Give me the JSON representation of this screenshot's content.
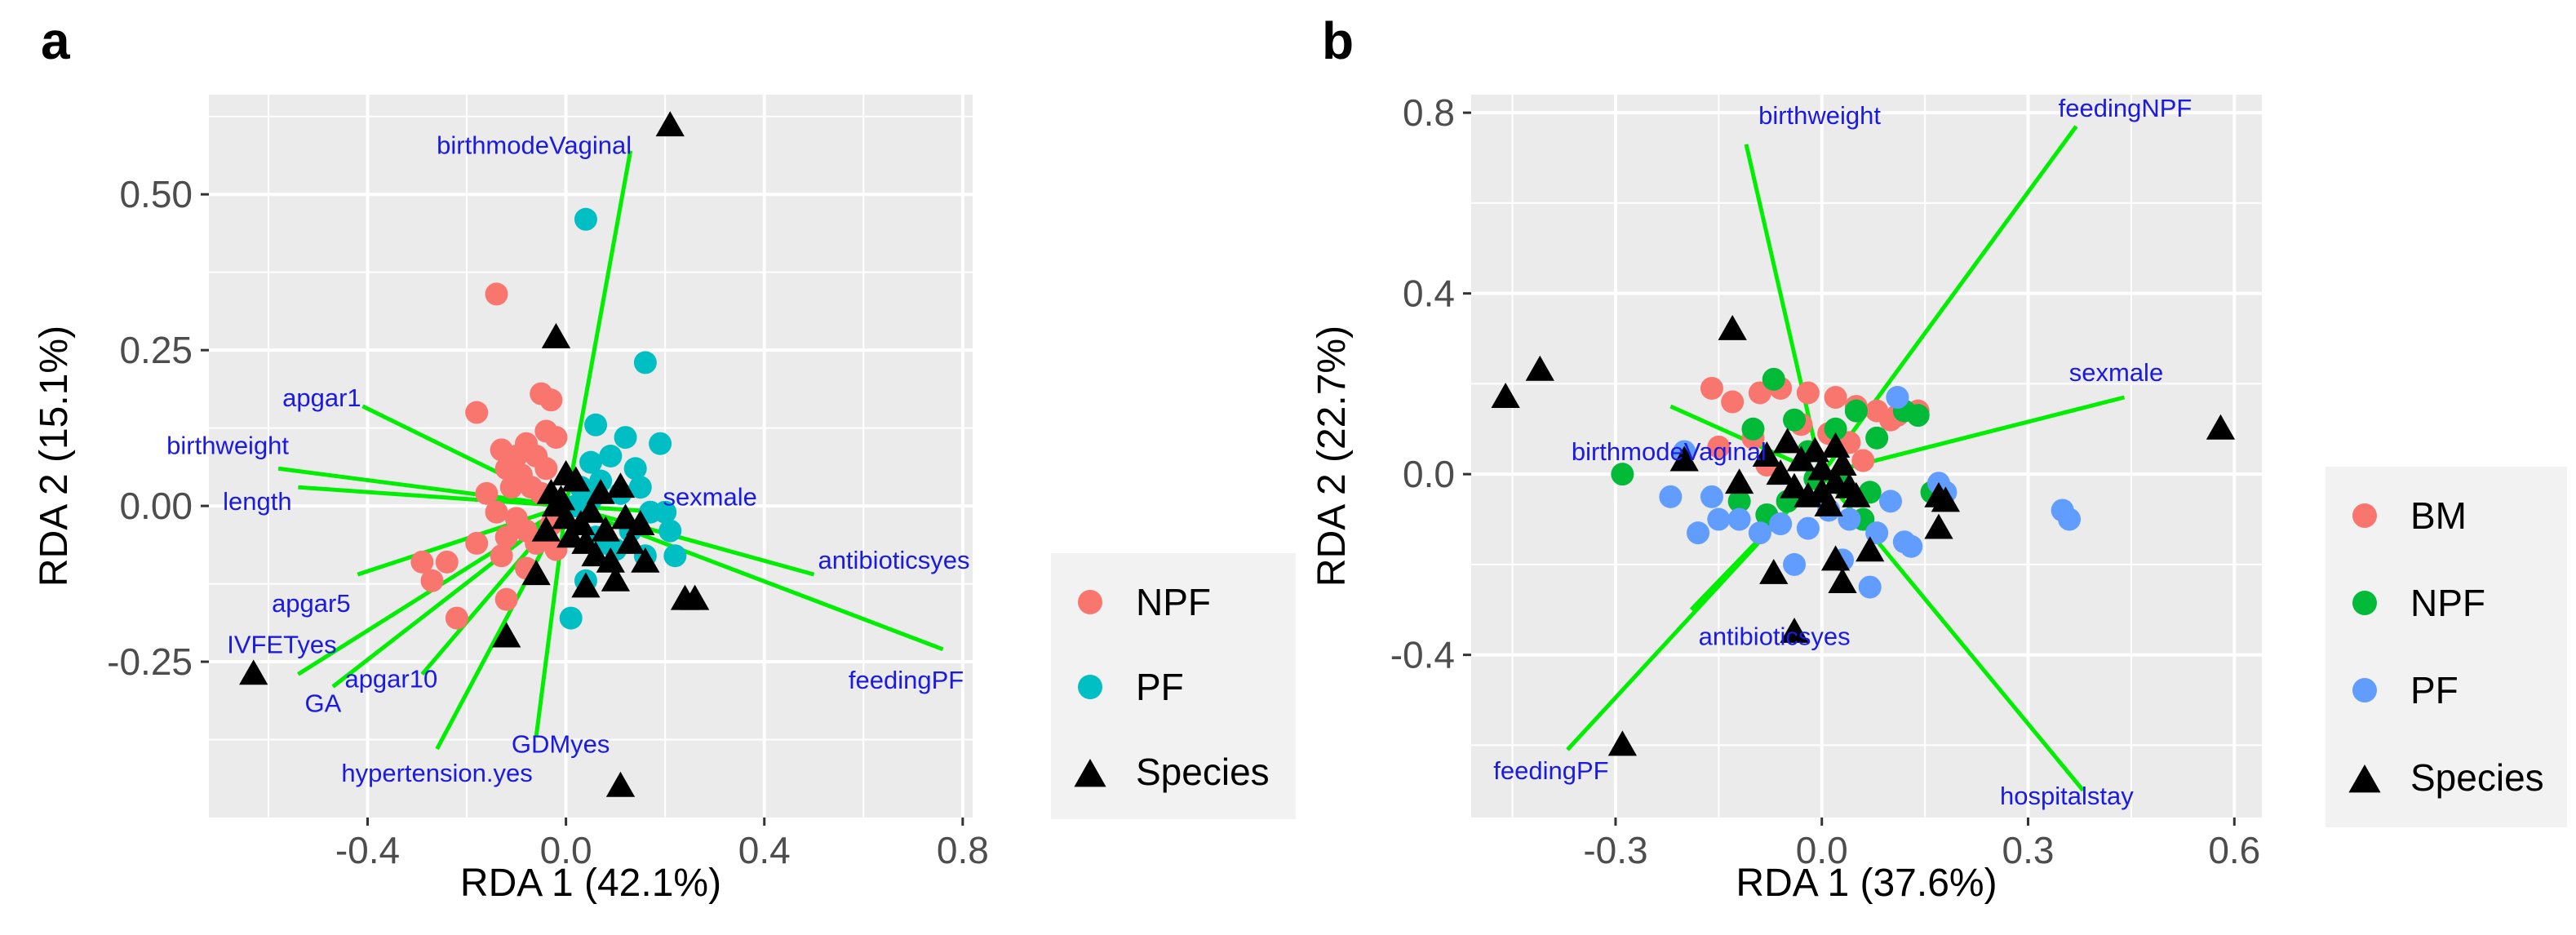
{
  "figure": {
    "colors": {
      "panel_bg": "#ebebeb",
      "grid_major": "#ffffff",
      "arrow": "#00ee00",
      "arrow_label": "#1a1ae0",
      "species": "#000000",
      "legend_bg": "#f2f2f2"
    }
  },
  "chart_data": [
    {
      "type": "scatter",
      "panel_label": "a",
      "xlabel": "RDA 1 (42.1%)",
      "ylabel": "RDA 2 (15.1%)",
      "xlim": [
        -0.72,
        0.82
      ],
      "ylim": [
        -0.5,
        0.66
      ],
      "xticks": [
        -0.4,
        0.0,
        0.4,
        0.8
      ],
      "xtick_labels": [
        "-0.4",
        "0.0",
        "0.4",
        "0.8"
      ],
      "yticks": [
        -0.25,
        0.0,
        0.25,
        0.5
      ],
      "ytick_labels": [
        "-0.25",
        "0.00",
        "0.25",
        "0.50"
      ],
      "grid": true,
      "legend": {
        "placement": "right",
        "items": [
          {
            "label": "NPF",
            "shape": "circle",
            "color": "#f8766d"
          },
          {
            "label": "PF",
            "shape": "circle",
            "color": "#00bfc4"
          },
          {
            "label": "Species",
            "shape": "triangle",
            "color": "#000000"
          }
        ]
      },
      "groups": [
        {
          "name": "NPF",
          "color": "#f8766d",
          "points": [
            [
              -0.14,
              0.34
            ],
            [
              -0.18,
              0.15
            ],
            [
              -0.05,
              0.18
            ],
            [
              -0.03,
              0.17
            ],
            [
              -0.02,
              0.11
            ],
            [
              -0.13,
              0.09
            ],
            [
              -0.1,
              0.08
            ],
            [
              -0.08,
              0.1
            ],
            [
              -0.06,
              0.08
            ],
            [
              -0.12,
              0.06
            ],
            [
              -0.09,
              0.05
            ],
            [
              -0.04,
              0.06
            ],
            [
              -0.16,
              0.02
            ],
            [
              -0.11,
              0.03
            ],
            [
              -0.07,
              0.03
            ],
            [
              -0.05,
              0.02
            ],
            [
              -0.14,
              -0.01
            ],
            [
              -0.1,
              -0.02
            ],
            [
              -0.08,
              -0.04
            ],
            [
              -0.03,
              -0.03
            ],
            [
              -0.12,
              -0.05
            ],
            [
              -0.06,
              -0.06
            ],
            [
              -0.02,
              -0.07
            ],
            [
              -0.08,
              -0.1
            ],
            [
              -0.13,
              -0.08
            ],
            [
              -0.29,
              -0.09
            ],
            [
              -0.27,
              -0.12
            ],
            [
              -0.24,
              -0.09
            ],
            [
              -0.22,
              -0.18
            ],
            [
              -0.12,
              -0.15
            ],
            [
              -0.18,
              -0.06
            ],
            [
              -0.04,
              0.12
            ]
          ]
        },
        {
          "name": "PF",
          "color": "#00bfc4",
          "points": [
            [
              0.04,
              0.46
            ],
            [
              0.16,
              0.23
            ],
            [
              0.06,
              0.13
            ],
            [
              0.12,
              0.11
            ],
            [
              0.19,
              0.1
            ],
            [
              0.09,
              0.08
            ],
            [
              0.14,
              0.06
            ],
            [
              0.05,
              0.07
            ],
            [
              0.07,
              0.04
            ],
            [
              0.15,
              0.03
            ],
            [
              0.11,
              0.02
            ],
            [
              0.03,
              0.03
            ],
            [
              0.17,
              -0.01
            ],
            [
              0.2,
              -0.01
            ],
            [
              0.13,
              -0.04
            ],
            [
              0.06,
              -0.05
            ],
            [
              0.21,
              -0.04
            ],
            [
              0.1,
              -0.07
            ],
            [
              0.16,
              -0.08
            ],
            [
              0.01,
              -0.18
            ],
            [
              0.04,
              -0.12
            ],
            [
              0.08,
              -0.06
            ],
            [
              0.02,
              0.0
            ],
            [
              0.05,
              0.01
            ],
            [
              0.22,
              -0.08
            ]
          ]
        },
        {
          "name": "Species",
          "color": "#000000",
          "shape": "triangle",
          "points": [
            [
              0.21,
              0.61
            ],
            [
              -0.02,
              0.27
            ],
            [
              -0.63,
              -0.27
            ],
            [
              0.11,
              -0.45
            ],
            [
              0.24,
              -0.15
            ],
            [
              0.26,
              -0.15
            ],
            [
              -0.12,
              -0.21
            ],
            [
              0.04,
              -0.13
            ],
            [
              0.1,
              -0.12
            ],
            [
              -0.06,
              -0.11
            ],
            [
              0.16,
              -0.09
            ],
            [
              0.13,
              -0.06
            ],
            [
              0.08,
              -0.04
            ],
            [
              0.03,
              -0.03
            ],
            [
              0.0,
              -0.02
            ],
            [
              0.05,
              -0.01
            ],
            [
              -0.02,
              0.0
            ],
            [
              0.07,
              0.02
            ],
            [
              0.02,
              0.04
            ],
            [
              0.11,
              0.03
            ],
            [
              0.04,
              -0.06
            ],
            [
              0.09,
              -0.09
            ],
            [
              -0.03,
              0.02
            ],
            [
              0.01,
              -0.05
            ],
            [
              0.15,
              -0.03
            ],
            [
              -0.01,
              0.01
            ],
            [
              0.06,
              -0.08
            ],
            [
              0.12,
              -0.02
            ],
            [
              0.0,
              0.05
            ],
            [
              -0.04,
              -0.04
            ]
          ]
        }
      ],
      "arrows": [
        {
          "label": "birthmodeVaginal",
          "x": 0.13,
          "y": 0.57
        },
        {
          "label": "apgar1",
          "x": -0.41,
          "y": 0.16
        },
        {
          "label": "birthweight",
          "x": -0.58,
          "y": 0.06
        },
        {
          "label": "length",
          "x": -0.54,
          "y": 0.03
        },
        {
          "label": "sexmale",
          "x": 0.2,
          "y": -0.01
        },
        {
          "label": "antibioticsyes",
          "x": 0.5,
          "y": -0.11
        },
        {
          "label": "feedingPF",
          "x": 0.76,
          "y": -0.23
        },
        {
          "label": "apgar5",
          "x": -0.42,
          "y": -0.11
        },
        {
          "label": "IVFETyes",
          "x": -0.54,
          "y": -0.27
        },
        {
          "label": "GA",
          "x": -0.47,
          "y": -0.29
        },
        {
          "label": "apgar10",
          "x": -0.29,
          "y": -0.27
        },
        {
          "label": "GDMyes",
          "x": -0.06,
          "y": -0.37
        },
        {
          "label": "hypertension.yes",
          "x": -0.26,
          "y": -0.39
        }
      ]
    },
    {
      "type": "scatter",
      "panel_label": "b",
      "xlabel": "RDA 1 (37.6%)",
      "ylabel": "RDA 2 (22.7%)",
      "xlim": [
        -0.51,
        0.64
      ],
      "ylim": [
        -0.76,
        0.84
      ],
      "xticks": [
        -0.3,
        0.0,
        0.3,
        0.6
      ],
      "xtick_labels": [
        "-0.3",
        "0.0",
        "0.3",
        "0.6"
      ],
      "yticks": [
        -0.4,
        0.0,
        0.4,
        0.8
      ],
      "ytick_labels": [
        "-0.4",
        "0.0",
        "0.4",
        "0.8"
      ],
      "grid": true,
      "legend": {
        "placement": "right",
        "items": [
          {
            "label": "BM",
            "shape": "circle",
            "color": "#f8766d"
          },
          {
            "label": "NPF",
            "shape": "circle",
            "color": "#00ba38"
          },
          {
            "label": "PF",
            "shape": "circle",
            "color": "#619cff"
          },
          {
            "label": "Species",
            "shape": "triangle",
            "color": "#000000"
          }
        ]
      },
      "groups": [
        {
          "name": "BM",
          "color": "#f8766d",
          "points": [
            [
              -0.16,
              0.19
            ],
            [
              -0.13,
              0.16
            ],
            [
              -0.09,
              0.18
            ],
            [
              -0.06,
              0.19
            ],
            [
              -0.02,
              0.18
            ],
            [
              0.02,
              0.17
            ],
            [
              0.05,
              0.15
            ],
            [
              0.08,
              0.14
            ],
            [
              0.11,
              0.13
            ],
            [
              0.14,
              0.14
            ],
            [
              -0.15,
              0.06
            ],
            [
              -0.1,
              0.08
            ],
            [
              -0.03,
              0.11
            ],
            [
              0.01,
              0.09
            ],
            [
              0.04,
              0.07
            ],
            [
              0.1,
              0.12
            ],
            [
              -0.08,
              0.02
            ],
            [
              0.06,
              0.03
            ]
          ]
        },
        {
          "name": "NPF",
          "color": "#00ba38",
          "points": [
            [
              -0.29,
              0.0
            ],
            [
              -0.07,
              0.21
            ],
            [
              -0.04,
              0.12
            ],
            [
              0.05,
              0.14
            ],
            [
              0.08,
              0.08
            ],
            [
              0.12,
              0.14
            ],
            [
              0.14,
              0.13
            ],
            [
              -0.1,
              0.1
            ],
            [
              -0.02,
              0.05
            ],
            [
              0.02,
              0.1
            ],
            [
              -0.05,
              -0.06
            ],
            [
              -0.08,
              -0.09
            ],
            [
              -0.12,
              -0.06
            ],
            [
              0.03,
              -0.02
            ],
            [
              0.07,
              -0.04
            ],
            [
              0.16,
              -0.04
            ],
            [
              -0.01,
              -0.01
            ],
            [
              0.06,
              -0.1
            ]
          ]
        },
        {
          "name": "PF",
          "color": "#619cff",
          "points": [
            [
              -0.2,
              0.05
            ],
            [
              -0.16,
              -0.05
            ],
            [
              -0.18,
              -0.13
            ],
            [
              -0.15,
              -0.1
            ],
            [
              -0.12,
              -0.1
            ],
            [
              -0.09,
              -0.13
            ],
            [
              -0.06,
              -0.11
            ],
            [
              -0.02,
              -0.12
            ],
            [
              0.01,
              -0.08
            ],
            [
              0.04,
              -0.1
            ],
            [
              0.08,
              -0.13
            ],
            [
              0.12,
              -0.15
            ],
            [
              0.13,
              -0.16
            ],
            [
              -0.04,
              -0.2
            ],
            [
              0.07,
              -0.25
            ],
            [
              0.03,
              -0.19
            ],
            [
              0.17,
              -0.02
            ],
            [
              0.18,
              -0.04
            ],
            [
              0.35,
              -0.08
            ],
            [
              0.36,
              -0.1
            ],
            [
              0.11,
              0.17
            ],
            [
              -0.22,
              -0.05
            ],
            [
              0.1,
              -0.06
            ]
          ]
        },
        {
          "name": "Species",
          "color": "#000000",
          "shape": "triangle",
          "points": [
            [
              -0.46,
              0.17
            ],
            [
              -0.41,
              0.23
            ],
            [
              -0.13,
              0.32
            ],
            [
              0.58,
              0.1
            ],
            [
              -0.29,
              -0.6
            ],
            [
              -0.04,
              -0.35
            ],
            [
              0.03,
              -0.24
            ],
            [
              -0.07,
              -0.22
            ],
            [
              0.07,
              -0.17
            ],
            [
              0.02,
              -0.19
            ],
            [
              0.17,
              -0.12
            ],
            [
              0.17,
              -0.05
            ],
            [
              0.18,
              -0.06
            ],
            [
              -0.2,
              0.03
            ],
            [
              -0.12,
              -0.02
            ],
            [
              -0.05,
              0.07
            ],
            [
              -0.03,
              0.03
            ],
            [
              0.0,
              0.01
            ],
            [
              0.02,
              -0.02
            ],
            [
              0.04,
              -0.03
            ],
            [
              -0.02,
              -0.05
            ],
            [
              0.01,
              -0.07
            ],
            [
              0.05,
              -0.05
            ],
            [
              -0.06,
              0.0
            ],
            [
              0.03,
              0.02
            ],
            [
              -0.01,
              0.05
            ],
            [
              0.0,
              -0.04
            ],
            [
              -0.04,
              -0.03
            ],
            [
              0.02,
              0.06
            ],
            [
              -0.08,
              0.04
            ]
          ]
        }
      ],
      "arrows": [
        {
          "label": "birthweight",
          "x": -0.11,
          "y": 0.73
        },
        {
          "label": "feedingNPF",
          "x": 0.37,
          "y": 0.77
        },
        {
          "label": "sexmale",
          "x": 0.44,
          "y": 0.17
        },
        {
          "label": "birthmodeVaginal",
          "x": -0.22,
          "y": 0.15
        },
        {
          "label": "antibioticsyes",
          "x": -0.19,
          "y": -0.3
        },
        {
          "label": "feedingPF",
          "x": -0.37,
          "y": -0.61
        },
        {
          "label": "hospitalstay",
          "x": 0.38,
          "y": -0.7
        }
      ]
    }
  ]
}
